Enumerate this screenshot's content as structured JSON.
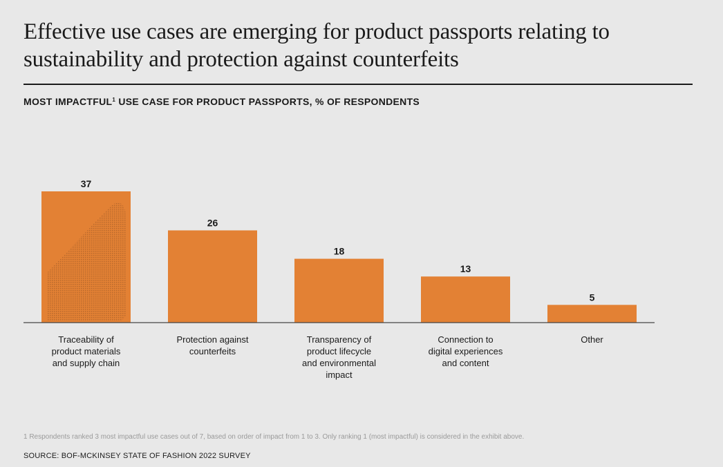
{
  "header": {
    "title": "Effective use cases are emerging for product passports relating to sustainability and protection against counterfeits",
    "subtitle_main": "MOST IMPACTFUL",
    "subtitle_sup": "1",
    "subtitle_rest": " USE CASE FOR PRODUCT PASSPORTS, % OF RESPONDENTS"
  },
  "chart_data": {
    "type": "bar",
    "title": "MOST IMPACTFUL USE CASE FOR PRODUCT PASSPORTS, % OF RESPONDENTS",
    "categories": [
      "Traceability of product materials and supply chain",
      "Protection against counterfeits",
      "Transparency of product lifecycle and environmental impact",
      "Connection to digital experiences and content",
      "Other"
    ],
    "category_lines": [
      [
        "Traceability of",
        "product materials",
        "and supply chain"
      ],
      [
        "Protection against",
        "counterfeits"
      ],
      [
        "Transparency of",
        "product lifecycle",
        "and environmental",
        "impact"
      ],
      [
        "Connection to",
        "digital experiences",
        "and content"
      ],
      [
        "Other"
      ]
    ],
    "values": [
      37,
      26,
      18,
      13,
      5
    ],
    "unit": "% of respondents",
    "ylim": [
      0,
      37
    ],
    "grid": false,
    "bar_color": "#e38134",
    "hatch_color": "#b9692c"
  },
  "footer": {
    "footnote": "1 Respondents ranked 3 most impactful use cases out of 7, based on order of impact from 1 to 3. Only ranking 1 (most impactful) is considered in the exhibit above.",
    "source": "SOURCE: BOF-MCKINSEY STATE OF FASHION 2022 SURVEY"
  }
}
